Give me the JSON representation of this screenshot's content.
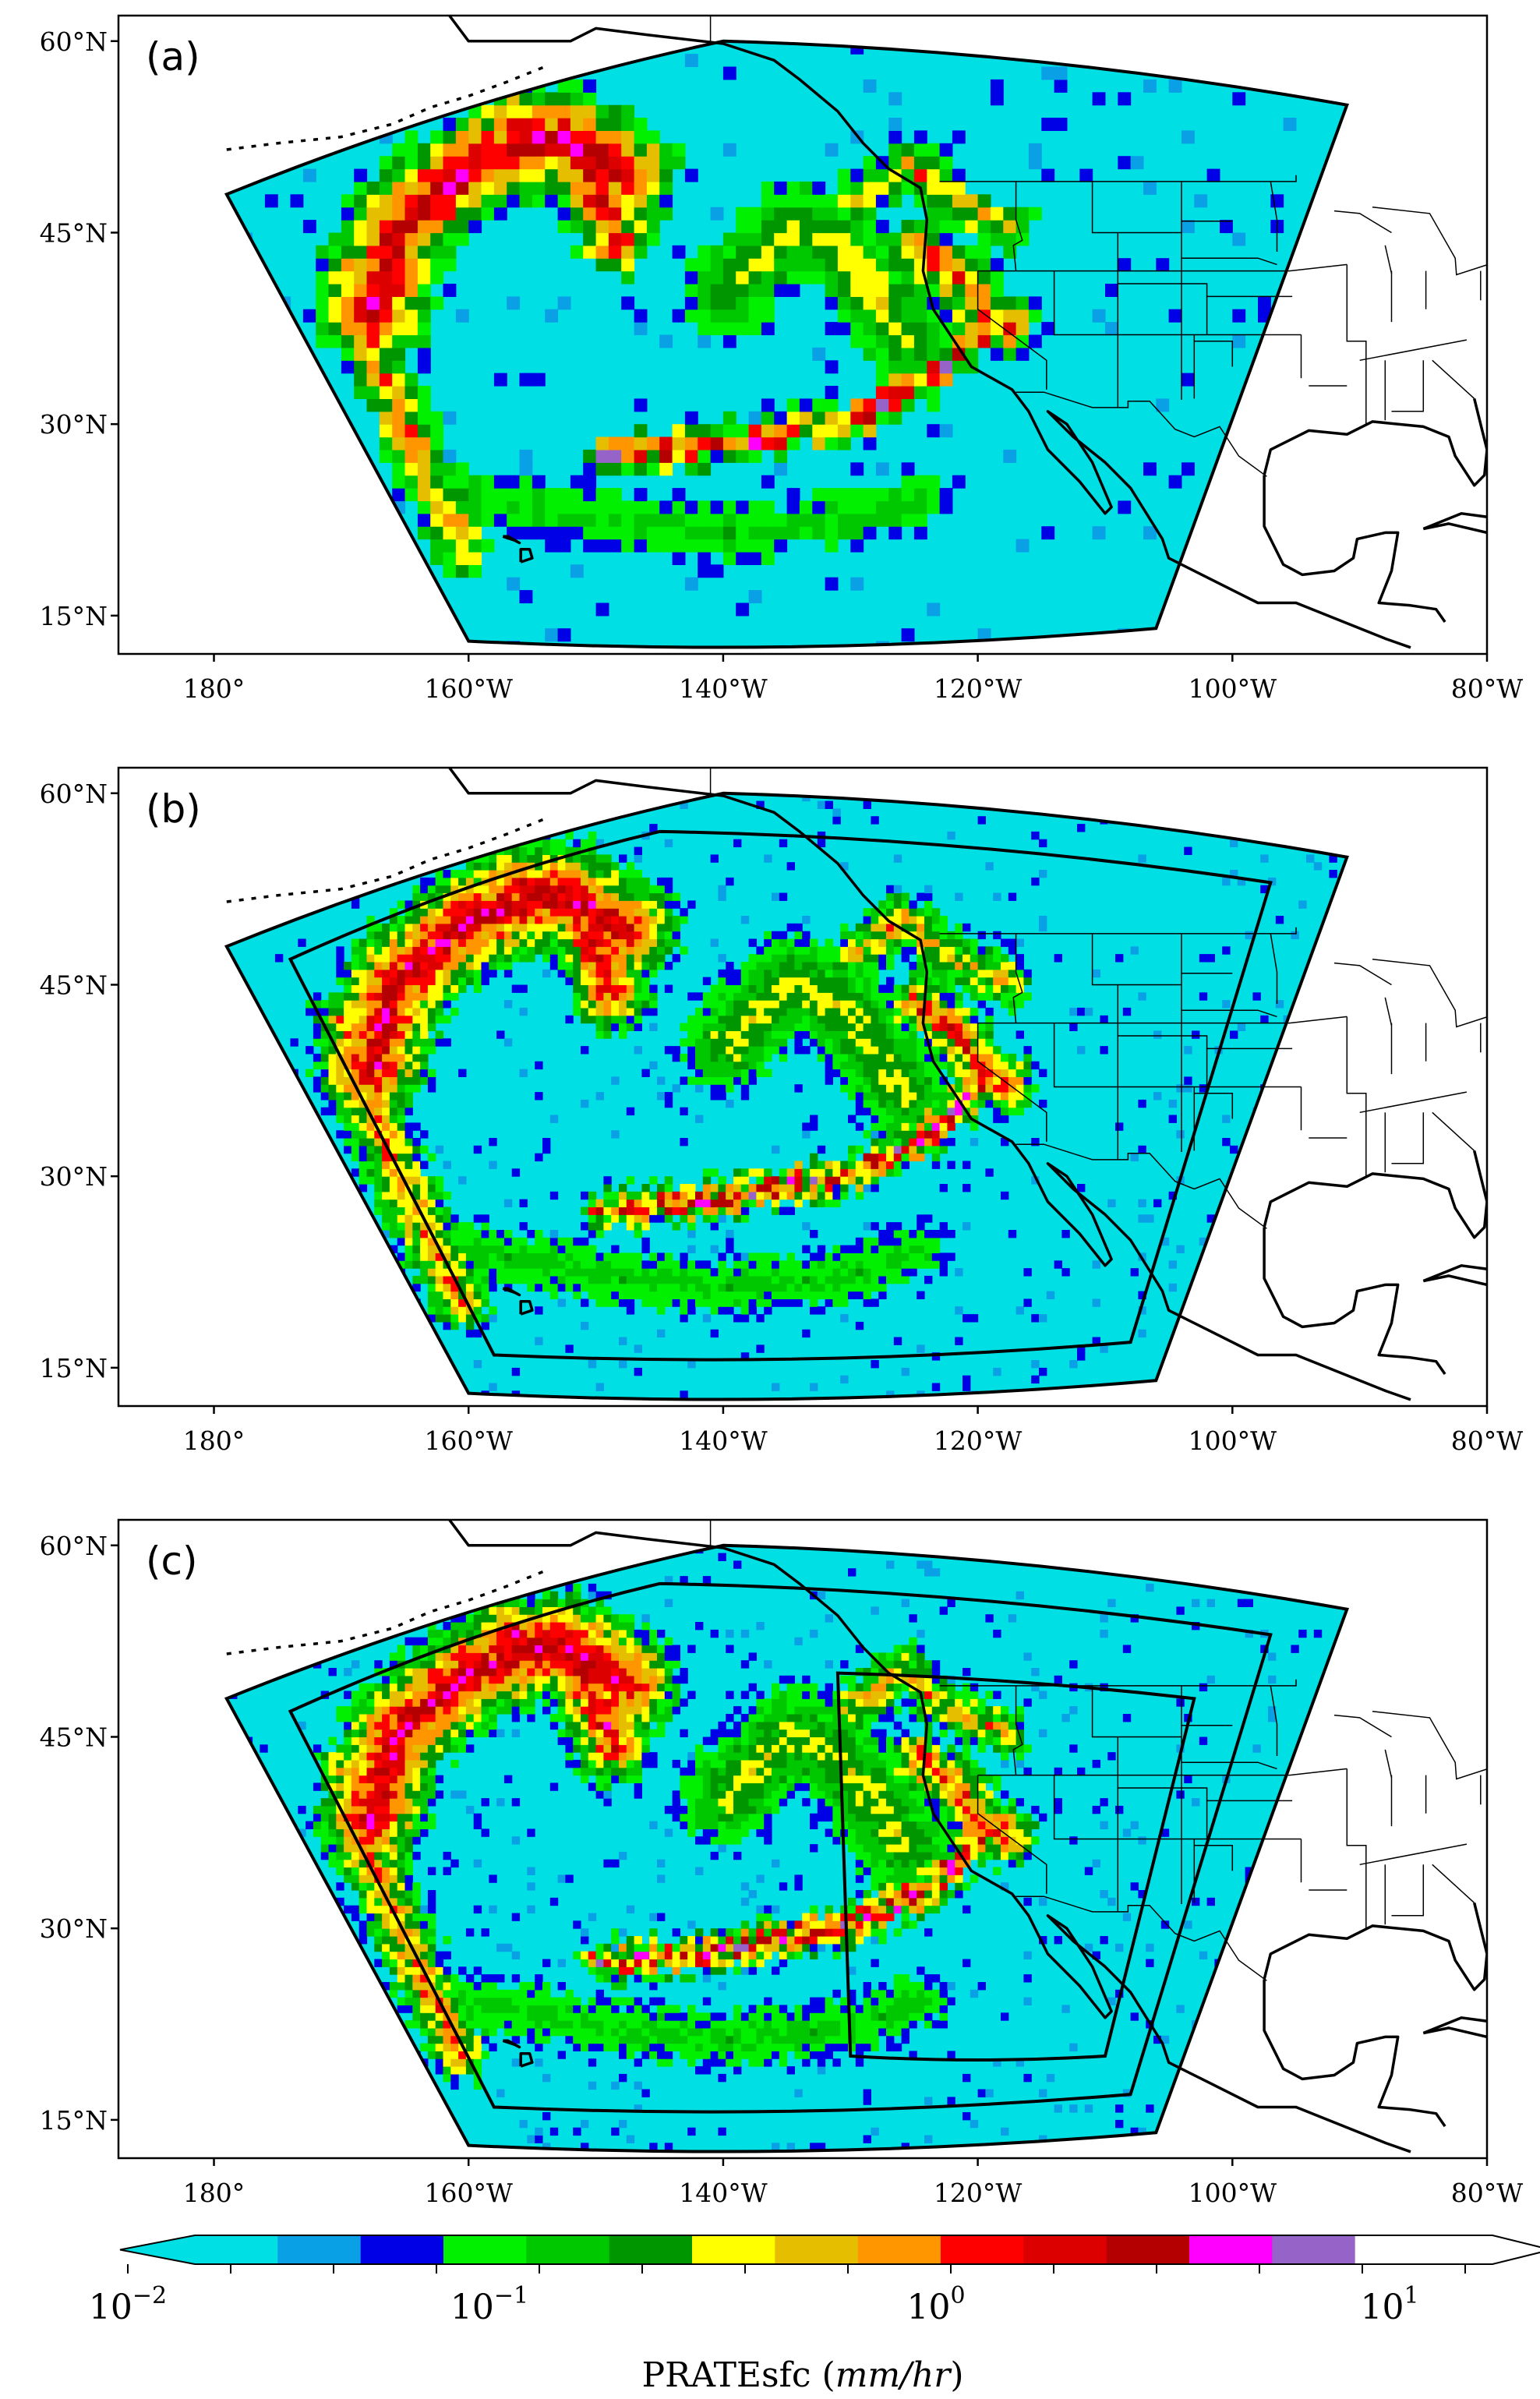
{
  "panels": [
    {
      "letter": "(a)",
      "nests": 0
    },
    {
      "letter": "(b)",
      "nests": 1
    },
    {
      "letter": "(c)",
      "nests": 2
    }
  ],
  "axes": {
    "lat_ticks": [
      "60°N",
      "45°N",
      "30°N",
      "15°N"
    ],
    "lon_ticks": [
      "180°",
      "160°W",
      "140°W",
      "120°W",
      "100°W",
      "80°W"
    ],
    "lat_values": [
      60,
      45,
      30,
      15
    ],
    "lon_values": [
      -180,
      -160,
      -140,
      -120,
      -100,
      -80
    ]
  },
  "colorbar": {
    "colors": [
      "#00e0e4",
      "#0aa0e6",
      "#0000e6",
      "#00f000",
      "#00c800",
      "#009600",
      "#ffff00",
      "#e6be00",
      "#ff9600",
      "#ff0000",
      "#dc0000",
      "#b40000",
      "#ff00ff",
      "#9664c8",
      "#ffffff"
    ],
    "tick_labels": [
      {
        "base": "10",
        "exp": "−2"
      },
      {
        "base": "10",
        "exp": "−1"
      },
      {
        "base": "10",
        "exp": "0"
      },
      {
        "base": "10",
        "exp": "1"
      }
    ],
    "label_main": "PRATEsfc (",
    "label_unit": "mm/hr",
    "label_close": ")"
  }
}
